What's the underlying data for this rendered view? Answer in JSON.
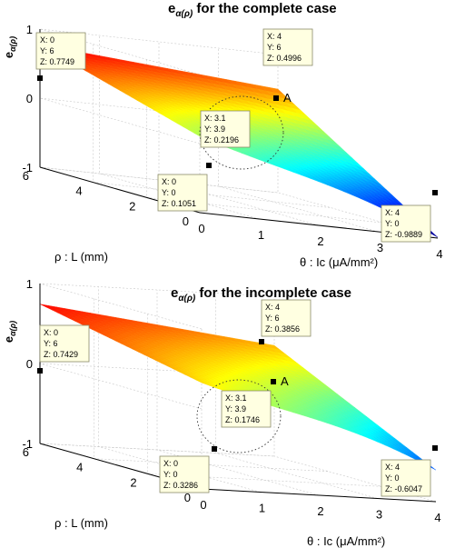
{
  "chart_data": [
    {
      "type": "surface",
      "title_prefix": "e",
      "title_sub": "α(ρ)",
      "title_suffix": " for the complete case",
      "zlabel_prefix": "e",
      "zlabel_sub": "α(ρ)",
      "xlabel": "θ : Ic (μA/mm²)",
      "ylabel": "ρ : L (mm)",
      "xlim": [
        0,
        4
      ],
      "ylim": [
        0,
        6
      ],
      "zlim": [
        -1,
        1
      ],
      "xticks": [
        "0",
        "1",
        "2",
        "3",
        "4"
      ],
      "yticks": [
        "0",
        "2",
        "4",
        "6"
      ],
      "zticks": [
        "-1",
        "0",
        "1"
      ],
      "colormap": "jet",
      "grid": true,
      "point_label": "A",
      "data_tips": [
        {
          "X": 0,
          "Y": 6,
          "Z": 0.7749
        },
        {
          "X": 4,
          "Y": 6,
          "Z": 0.4996
        },
        {
          "X": 3.1,
          "Y": 3.9,
          "Z": 0.2196
        },
        {
          "X": 0,
          "Y": 0,
          "Z": 0.1051
        },
        {
          "X": 4,
          "Y": 0,
          "Z": -0.9889
        }
      ]
    },
    {
      "type": "surface",
      "title_prefix": "e",
      "title_sub": "α(ρ)",
      "title_suffix": " for the incomplete case",
      "zlabel_prefix": "e",
      "zlabel_sub": "α(ρ)",
      "xlabel": "θ : Ic (μA/mm²)",
      "ylabel": "ρ : L (mm)",
      "xlim": [
        0,
        4
      ],
      "ylim": [
        0,
        6
      ],
      "zlim": [
        -1,
        1
      ],
      "xticks": [
        "0",
        "1",
        "2",
        "3",
        "4"
      ],
      "yticks": [
        "0",
        "2",
        "4",
        "6"
      ],
      "zticks": [
        "-1",
        "0",
        "1"
      ],
      "colormap": "jet",
      "grid": true,
      "point_label": "A",
      "data_tips": [
        {
          "X": 0,
          "Y": 6,
          "Z": 0.7429
        },
        {
          "X": 4,
          "Y": 6,
          "Z": 0.3856
        },
        {
          "X": 3.1,
          "Y": 3.9,
          "Z": 0.1746
        },
        {
          "X": 0,
          "Y": 0,
          "Z": 0.3286
        },
        {
          "X": 4,
          "Y": 0,
          "Z": -0.6047
        }
      ]
    }
  ]
}
